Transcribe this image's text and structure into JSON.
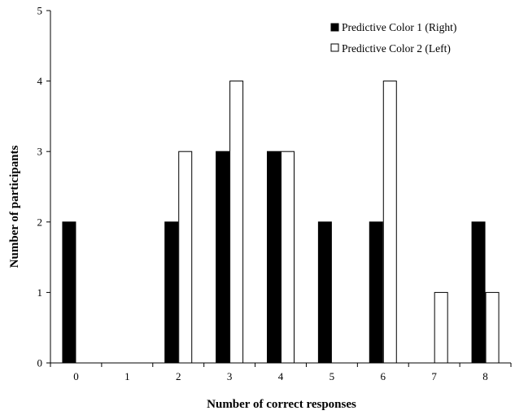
{
  "chart_data": {
    "type": "bar",
    "categories": [
      "0",
      "1",
      "2",
      "3",
      "4",
      "5",
      "6",
      "7",
      "8"
    ],
    "series": [
      {
        "name": "Predictive Color 1 (Right)",
        "values": [
          2,
          0,
          2,
          3,
          3,
          2,
          2,
          0,
          2
        ],
        "fill": "#000000"
      },
      {
        "name": "Predictive Color 2 (Left)",
        "values": [
          0,
          0,
          3,
          4,
          3,
          0,
          4,
          1,
          1
        ],
        "fill": "#ffffff"
      }
    ],
    "xlabel": "Number of correct responses",
    "ylabel": "Number of participants",
    "ylim": [
      0,
      5
    ],
    "yticks": [
      "0",
      "1",
      "2",
      "3",
      "4",
      "5"
    ],
    "grid": false,
    "legend_position": "top-right"
  }
}
